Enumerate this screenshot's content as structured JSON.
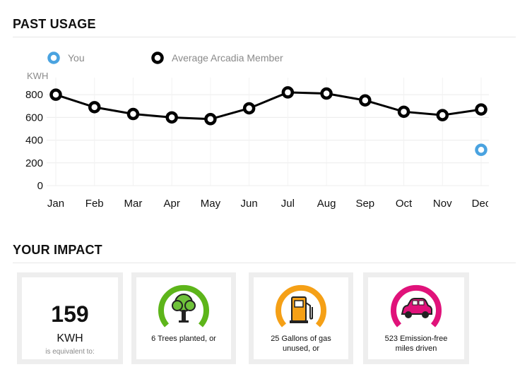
{
  "sections": {
    "past_usage_title": "PAST USAGE",
    "impact_title": "YOUR IMPACT"
  },
  "chart_data": {
    "type": "line",
    "x": [
      "Jan",
      "Feb",
      "Mar",
      "Apr",
      "May",
      "Jun",
      "Jul",
      "Aug",
      "Sep",
      "Oct",
      "Nov",
      "Dec"
    ],
    "series": [
      {
        "name": "You",
        "color": "#4aa3e0",
        "marker_only": true,
        "values": [
          null,
          null,
          null,
          null,
          null,
          null,
          null,
          null,
          null,
          null,
          null,
          315
        ]
      },
      {
        "name": "Average Arcadia Member",
        "color": "#000000",
        "values": [
          800,
          690,
          630,
          600,
          585,
          680,
          820,
          810,
          750,
          650,
          620,
          670
        ]
      }
    ],
    "ylabel": "KWH",
    "yticks": [
      0,
      200,
      400,
      600,
      800
    ],
    "ylim": [
      0,
      950
    ],
    "grid": true,
    "legend_position": "top-left"
  },
  "impact": {
    "kwh_value": "159",
    "kwh_unit": "KWH",
    "kwh_note": "is equivalent to:",
    "cards": [
      {
        "icon": "tree-icon",
        "color": "#5db51a",
        "caption_line1": "6 Trees planted, or",
        "caption_line2": ""
      },
      {
        "icon": "gas-pump-icon",
        "color": "#f5a016",
        "caption_line1": "25 Gallons of gas",
        "caption_line2": "unused, or"
      },
      {
        "icon": "car-icon",
        "color": "#e0127a",
        "caption_line1": "523 Emission-free",
        "caption_line2": "miles driven"
      }
    ]
  }
}
